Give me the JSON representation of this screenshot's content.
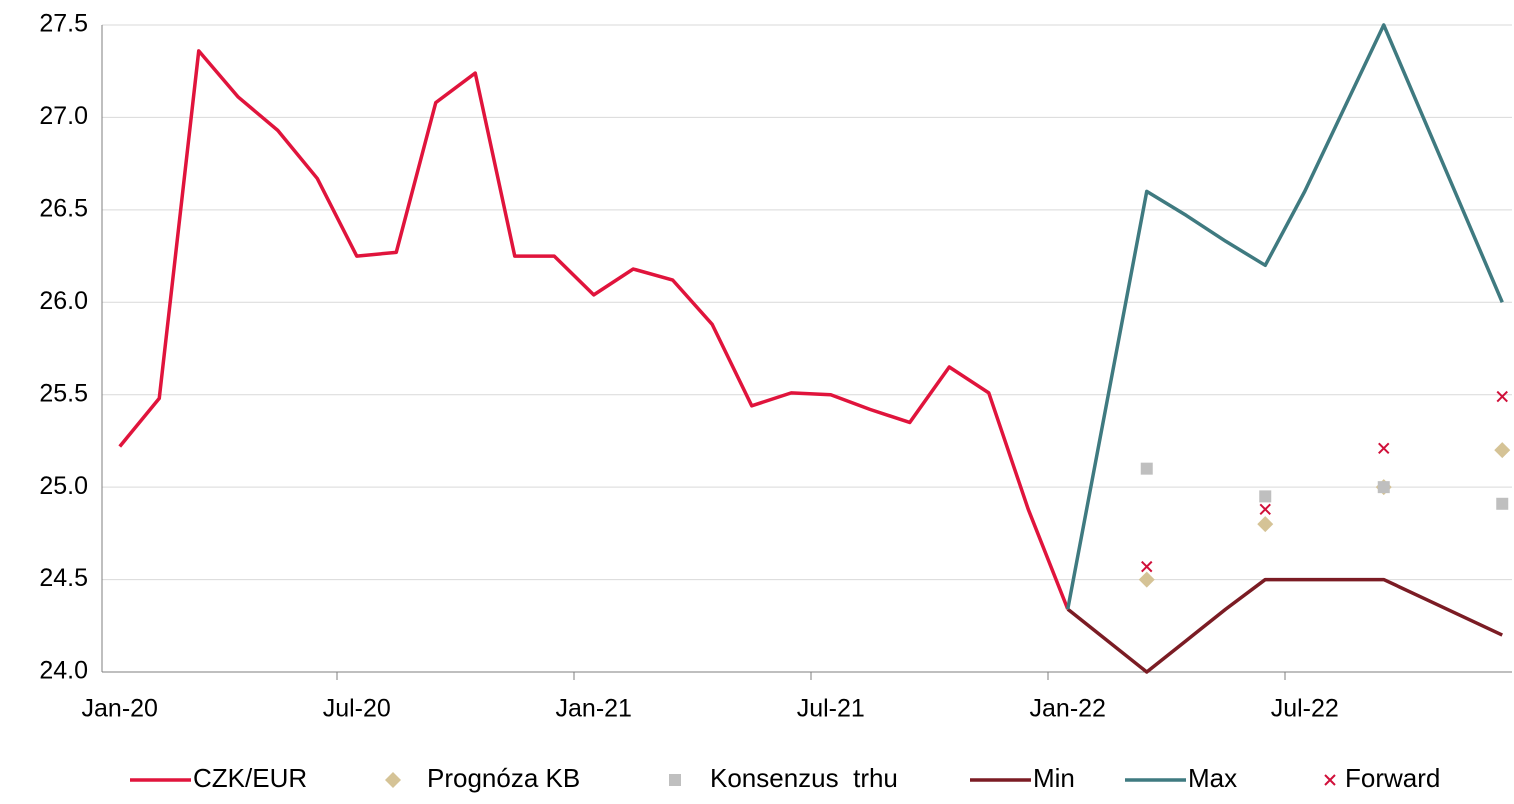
{
  "chart_data": {
    "type": "line",
    "categories": [
      "Jan-20",
      null,
      null,
      null,
      null,
      null,
      "Jul-20",
      null,
      null,
      null,
      null,
      null,
      "Jan-21",
      null,
      null,
      null,
      null,
      null,
      "Jul-21",
      null,
      null,
      null,
      null,
      null,
      "Jan-22",
      null,
      null,
      null,
      null,
      null,
      "Jul-22",
      null,
      null,
      null,
      null,
      null
    ],
    "ylim": [
      24,
      27.5
    ],
    "yticks": [
      {
        "value": 24,
        "label": "24.0"
      },
      24.5,
      {
        "value": 25,
        "label": "25.0"
      },
      25.5,
      {
        "value": 26,
        "label": "26.0"
      },
      26.5,
      {
        "value": 27,
        "label": "27.0"
      },
      27.5
    ],
    "grid": true,
    "legend": "bottom",
    "series": [
      {
        "name": "CZK/EUR",
        "type": "line",
        "color": "#e0143c",
        "values": [
          25.22,
          25.48,
          27.36,
          27.11,
          26.93,
          26.67,
          26.25,
          26.27,
          27.08,
          27.24,
          26.25,
          26.25,
          26.04,
          26.18,
          26.12,
          25.88,
          25.44,
          25.51,
          25.5,
          25.42,
          25.35,
          25.65,
          25.51,
          24.88,
          24.34,
          null,
          null,
          null,
          null,
          null,
          null,
          null,
          null,
          null,
          null,
          null
        ]
      },
      {
        "name": "Prognóza KB",
        "type": "scatter",
        "marker": "diamond",
        "color": "#d5c396",
        "values": [
          null,
          null,
          null,
          null,
          null,
          null,
          null,
          null,
          null,
          null,
          null,
          null,
          null,
          null,
          null,
          null,
          null,
          null,
          null,
          null,
          null,
          null,
          null,
          null,
          null,
          null,
          24.5,
          null,
          null,
          24.8,
          null,
          null,
          25.0,
          null,
          null,
          25.2
        ]
      },
      {
        "name": "Konsenzus  trhu",
        "type": "scatter",
        "marker": "square",
        "color": "#bfbfbf",
        "values": [
          null,
          null,
          null,
          null,
          null,
          null,
          null,
          null,
          null,
          null,
          null,
          null,
          null,
          null,
          null,
          null,
          null,
          null,
          null,
          null,
          null,
          null,
          null,
          null,
          null,
          null,
          25.1,
          null,
          null,
          24.95,
          null,
          null,
          25.0,
          null,
          null,
          24.91
        ]
      },
      {
        "name": "Min",
        "type": "line",
        "color": "#7b1c24",
        "values": [
          null,
          null,
          null,
          null,
          null,
          null,
          null,
          null,
          null,
          null,
          null,
          null,
          null,
          null,
          null,
          null,
          null,
          null,
          null,
          null,
          null,
          null,
          null,
          null,
          24.34,
          null,
          24.0,
          24.17,
          24.34,
          24.5,
          24.5,
          24.5,
          24.5,
          24.4,
          24.3,
          24.2
        ]
      },
      {
        "name": "Max",
        "type": "line",
        "color": "#3f7a80",
        "values": [
          null,
          null,
          null,
          null,
          null,
          null,
          null,
          null,
          null,
          null,
          null,
          null,
          null,
          null,
          null,
          null,
          null,
          null,
          null,
          null,
          null,
          null,
          null,
          null,
          24.34,
          null,
          26.6,
          26.47,
          26.33,
          26.2,
          26.6,
          27.05,
          27.5,
          27.0,
          26.5,
          26.0
        ]
      },
      {
        "name": "Forward",
        "type": "scatter",
        "marker": "x",
        "color": "#d0103a",
        "values": [
          null,
          null,
          null,
          null,
          null,
          null,
          null,
          null,
          null,
          null,
          null,
          null,
          null,
          null,
          null,
          null,
          null,
          null,
          null,
          null,
          null,
          null,
          null,
          null,
          null,
          null,
          24.57,
          null,
          null,
          24.88,
          null,
          null,
          25.21,
          null,
          null,
          25.49
        ]
      }
    ]
  }
}
